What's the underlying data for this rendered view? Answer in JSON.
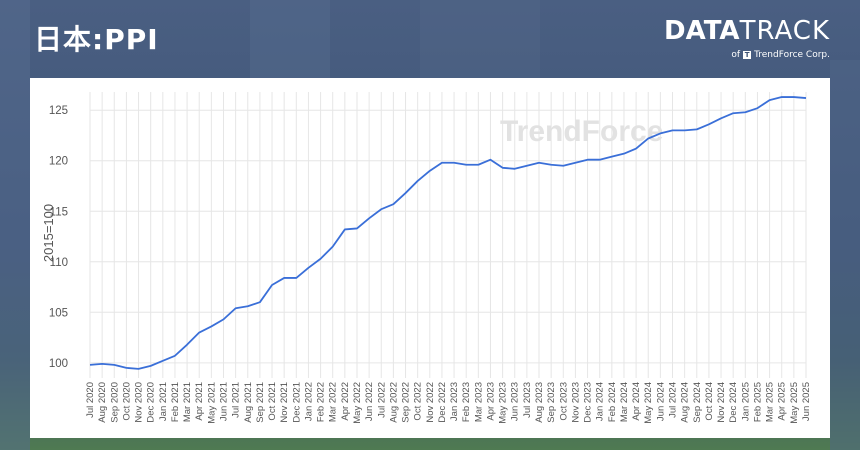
{
  "header": {
    "title": "日本:PPI",
    "brand_main": "DATA",
    "brand_light": "TRACK",
    "brand_of": "of",
    "brand_company": "TrendForce Corp."
  },
  "watermark": "TrendForce",
  "colors": {
    "line": "#3a6fd8",
    "grid": "#e6e6e6",
    "axis_text": "#555555"
  },
  "chart_data": {
    "type": "line",
    "title": "",
    "xlabel": "",
    "ylabel": "2015=100",
    "ylim": [
      98.5,
      126.8
    ],
    "yticks": [
      100,
      105,
      110,
      115,
      120,
      125
    ],
    "grid": true,
    "categories": [
      "Jul 2020",
      "Aug 2020",
      "Sep 2020",
      "Oct 2020",
      "Nov 2020",
      "Dec 2020",
      "Jan 2021",
      "Feb 2021",
      "Mar 2021",
      "Apr 2021",
      "May 2021",
      "Jun 2021",
      "Jul 2021",
      "Aug 2021",
      "Sep 2021",
      "Oct 2021",
      "Nov 2021",
      "Dec 2021",
      "Jan 2022",
      "Feb 2022",
      "Mar 2022",
      "Apr 2022",
      "May 2022",
      "Jun 2022",
      "Jul 2022",
      "Aug 2022",
      "Sep 2022",
      "Oct 2022",
      "Nov 2022",
      "Dec 2022",
      "Jan 2023",
      "Feb 2023",
      "Mar 2023",
      "Apr 2023",
      "May 2023",
      "Jun 2023",
      "Jul 2023",
      "Aug 2023",
      "Sep 2023",
      "Oct 2023",
      "Nov 2023",
      "Dec 2023",
      "Jan 2024",
      "Feb 2024",
      "Mar 2024",
      "Apr 2024",
      "May 2024",
      "Jun 2024",
      "Jul 2024",
      "Aug 2024",
      "Sep 2024",
      "Oct 2024",
      "Nov 2024",
      "Dec 2024",
      "Jan 2025",
      "Feb 2025",
      "Mar 2025",
      "Apr 2025",
      "May 2025",
      "Jun 2025"
    ],
    "series": [
      {
        "values": [
          99.8,
          99.9,
          99.8,
          99.5,
          99.4,
          99.7,
          100.2,
          100.7,
          101.8,
          103.0,
          103.6,
          104.3,
          105.4,
          105.6,
          106.0,
          107.7,
          108.4,
          108.4,
          109.4,
          110.3,
          111.5,
          113.2,
          113.3,
          114.3,
          115.2,
          115.7,
          116.8,
          118.0,
          119.0,
          119.8,
          119.8,
          119.6,
          119.6,
          120.1,
          119.3,
          119.2,
          119.5,
          119.8,
          119.6,
          119.5,
          119.8,
          120.1,
          120.1,
          120.4,
          120.7,
          121.2,
          122.2,
          122.7,
          123.0,
          123.0,
          123.1,
          123.6,
          124.2,
          124.7,
          124.8,
          125.2,
          126.0,
          126.3,
          126.3,
          126.2
        ]
      }
    ]
  }
}
